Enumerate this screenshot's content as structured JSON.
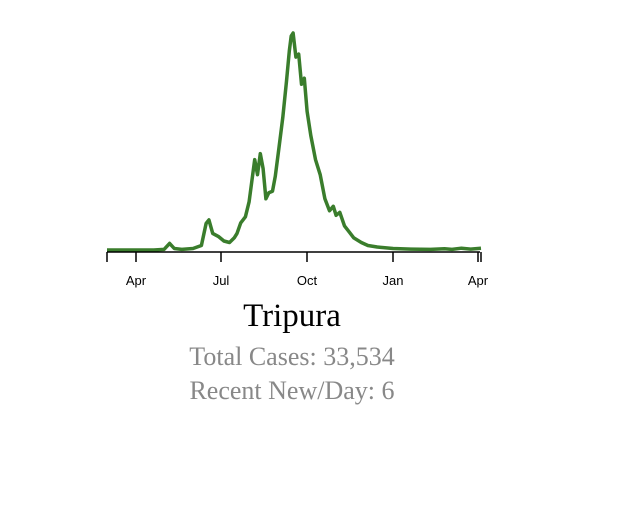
{
  "colors": {
    "line": "#3a7d2c",
    "axis": "#000000",
    "stat_text": "#888888"
  },
  "region_name": "Tripura",
  "stats": {
    "total_cases": "Total Cases: 33,534",
    "recent_new_per_day": "Recent New/Day: 6"
  },
  "chart_data": {
    "type": "line",
    "title": "",
    "xlabel": "",
    "ylabel": "",
    "x_ticks": [
      "Apr",
      "Jul",
      "Oct",
      "Jan",
      "Apr"
    ],
    "grid": false,
    "y_axis_visible": false,
    "x_start": "2020-03-01",
    "x_end": "2021-04-05",
    "ylim": [
      0,
      720
    ],
    "series": [
      {
        "color": "#3a7d2c",
        "points": [
          [
            "2020-03-01",
            0
          ],
          [
            "2020-04-01",
            0
          ],
          [
            "2020-04-20",
            0
          ],
          [
            "2020-05-01",
            2
          ],
          [
            "2020-05-07",
            22
          ],
          [
            "2020-05-12",
            5
          ],
          [
            "2020-05-20",
            2
          ],
          [
            "2020-06-01",
            5
          ],
          [
            "2020-06-10",
            15
          ],
          [
            "2020-06-15",
            88
          ],
          [
            "2020-06-18",
            100
          ],
          [
            "2020-06-22",
            55
          ],
          [
            "2020-06-28",
            45
          ],
          [
            "2020-07-04",
            30
          ],
          [
            "2020-07-10",
            25
          ],
          [
            "2020-07-15",
            40
          ],
          [
            "2020-07-18",
            55
          ],
          [
            "2020-07-22",
            90
          ],
          [
            "2020-07-27",
            110
          ],
          [
            "2020-07-31",
            160
          ],
          [
            "2020-08-03",
            230
          ],
          [
            "2020-08-06",
            300
          ],
          [
            "2020-08-09",
            250
          ],
          [
            "2020-08-12",
            320
          ],
          [
            "2020-08-15",
            270
          ],
          [
            "2020-08-18",
            170
          ],
          [
            "2020-08-21",
            190
          ],
          [
            "2020-08-25",
            195
          ],
          [
            "2020-08-28",
            245
          ],
          [
            "2020-09-01",
            340
          ],
          [
            "2020-09-05",
            440
          ],
          [
            "2020-09-09",
            560
          ],
          [
            "2020-09-12",
            660
          ],
          [
            "2020-09-14",
            710
          ],
          [
            "2020-09-16",
            720
          ],
          [
            "2020-09-19",
            640
          ],
          [
            "2020-09-22",
            650
          ],
          [
            "2020-09-25",
            550
          ],
          [
            "2020-09-28",
            570
          ],
          [
            "2020-10-01",
            460
          ],
          [
            "2020-10-05",
            380
          ],
          [
            "2020-10-10",
            300
          ],
          [
            "2020-10-15",
            250
          ],
          [
            "2020-10-20",
            170
          ],
          [
            "2020-10-25",
            130
          ],
          [
            "2020-10-29",
            145
          ],
          [
            "2020-11-01",
            115
          ],
          [
            "2020-11-05",
            125
          ],
          [
            "2020-11-10",
            80
          ],
          [
            "2020-11-15",
            60
          ],
          [
            "2020-11-20",
            40
          ],
          [
            "2020-11-28",
            25
          ],
          [
            "2020-12-05",
            15
          ],
          [
            "2020-12-15",
            10
          ],
          [
            "2021-01-01",
            5
          ],
          [
            "2021-01-20",
            3
          ],
          [
            "2021-02-10",
            2
          ],
          [
            "2021-02-25",
            4
          ],
          [
            "2021-03-05",
            2
          ],
          [
            "2021-03-15",
            6
          ],
          [
            "2021-03-25",
            3
          ],
          [
            "2021-04-05",
            6
          ]
        ]
      }
    ]
  }
}
